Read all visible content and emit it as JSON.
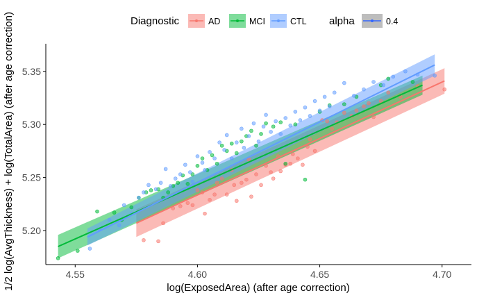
{
  "chart_data": {
    "type": "scatter",
    "title": "",
    "xlabel": "log(ExposedArea) (after age correction)",
    "ylabel": "1/2 log(AvgThickness) + log(TotalArea) (after age correction)",
    "xlim": [
      4.538,
      4.712
    ],
    "ylim": [
      5.168,
      5.376
    ],
    "x_ticks": [
      4.55,
      4.6,
      4.65,
      4.7
    ],
    "x_tick_labels": [
      "4.55",
      "4.60",
      "4.65",
      "4.70"
    ],
    "y_ticks": [
      5.2,
      5.25,
      5.3,
      5.35
    ],
    "y_tick_labels": [
      "5.20",
      "5.25",
      "5.30",
      "5.35"
    ],
    "grid": false,
    "legend_placement": "top",
    "legend": {
      "group_title": "Diagnostic",
      "groups": [
        "AD",
        "MCI",
        "CTL"
      ],
      "alpha_title": "alpha",
      "alpha_value": "0.4"
    },
    "series": [
      {
        "name": "AD",
        "color": "#F8766D",
        "fit": {
          "x": [
            4.575,
            4.701
          ],
          "y": [
            5.207,
            5.341
          ]
        },
        "band_halfwidth": {
          "start": 0.013,
          "end": 0.012
        },
        "points": [
          [
            4.578,
            5.191
          ],
          [
            4.584,
            5.19
          ],
          [
            4.586,
            5.207
          ],
          [
            4.59,
            5.221
          ],
          [
            4.593,
            5.223
          ],
          [
            4.596,
            5.226
          ],
          [
            4.598,
            5.224
          ],
          [
            4.6,
            5.238
          ],
          [
            4.602,
            5.236
          ],
          [
            4.603,
            5.216
          ],
          [
            4.605,
            5.229
          ],
          [
            4.607,
            5.234
          ],
          [
            4.608,
            5.245
          ],
          [
            4.61,
            5.249
          ],
          [
            4.612,
            5.234
          ],
          [
            4.614,
            5.257
          ],
          [
            4.615,
            5.243
          ],
          [
            4.616,
            5.228
          ],
          [
            4.618,
            5.245
          ],
          [
            4.62,
            5.248
          ],
          [
            4.621,
            5.267
          ],
          [
            4.622,
            5.232
          ],
          [
            4.624,
            5.253
          ],
          [
            4.626,
            5.243
          ],
          [
            4.628,
            5.261
          ],
          [
            4.63,
            5.255
          ],
          [
            4.631,
            5.249
          ],
          [
            4.633,
            5.27
          ],
          [
            4.634,
            5.256
          ],
          [
            4.636,
            5.262
          ],
          [
            4.638,
            5.263
          ],
          [
            4.639,
            5.272
          ],
          [
            4.641,
            5.268
          ],
          [
            4.643,
            5.262
          ],
          [
            4.645,
            5.279
          ],
          [
            4.646,
            5.286
          ],
          [
            4.648,
            5.275
          ],
          [
            4.651,
            5.304
          ],
          [
            4.653,
            5.303
          ],
          [
            4.655,
            5.296
          ],
          [
            4.657,
            5.302
          ],
          [
            4.66,
            5.311
          ],
          [
            4.663,
            5.308
          ],
          [
            4.665,
            5.313
          ],
          [
            4.668,
            5.317
          ],
          [
            4.67,
            5.32
          ],
          [
            4.672,
            5.307
          ],
          [
            4.675,
            5.322
          ],
          [
            4.678,
            5.33
          ],
          [
            4.683,
            5.326
          ],
          [
            4.69,
            5.336
          ],
          [
            4.701,
            5.333
          ]
        ]
      },
      {
        "name": "MCI",
        "color": "#00BA38",
        "fit": {
          "x": [
            4.543,
            4.692
          ],
          "y": [
            5.185,
            5.337
          ]
        },
        "band_halfwidth": {
          "start": 0.011,
          "end": 0.009
        },
        "points": [
          [
            4.543,
            5.174
          ],
          [
            4.551,
            5.181
          ],
          [
            4.559,
            5.218
          ],
          [
            4.566,
            5.217
          ],
          [
            4.569,
            5.21
          ],
          [
            4.573,
            5.222
          ],
          [
            4.576,
            5.231
          ],
          [
            4.579,
            5.236
          ],
          [
            4.581,
            5.238
          ],
          [
            4.584,
            5.239
          ],
          [
            4.586,
            5.231
          ],
          [
            4.588,
            5.236
          ],
          [
            4.59,
            5.242
          ],
          [
            4.592,
            5.245
          ],
          [
            4.594,
            5.252
          ],
          [
            4.596,
            5.244
          ],
          [
            4.598,
            5.253
          ],
          [
            4.6,
            5.261
          ],
          [
            4.602,
            5.268
          ],
          [
            4.604,
            5.257
          ],
          [
            4.606,
            5.271
          ],
          [
            4.608,
            5.263
          ],
          [
            4.61,
            5.28
          ],
          [
            4.612,
            5.275
          ],
          [
            4.614,
            5.282
          ],
          [
            4.616,
            5.273
          ],
          [
            4.618,
            5.284
          ],
          [
            4.62,
            5.289
          ],
          [
            4.622,
            5.294
          ],
          [
            4.624,
            5.28
          ],
          [
            4.626,
            5.291
          ],
          [
            4.628,
            5.301
          ],
          [
            4.631,
            5.298
          ],
          [
            4.634,
            5.302
          ],
          [
            4.636,
            5.263
          ],
          [
            4.64,
            5.3
          ],
          [
            4.644,
            5.248
          ],
          [
            4.65,
            5.312
          ],
          [
            4.654,
            5.318
          ],
          [
            4.66,
            5.319
          ],
          [
            4.665,
            5.326
          ],
          [
            4.675,
            5.337
          ],
          [
            4.678,
            5.343
          ],
          [
            4.688,
            5.34
          ]
        ]
      },
      {
        "name": "CTL",
        "color": "#619CFF",
        "fit": {
          "x": [
            4.555,
            4.697
          ],
          "y": [
            5.194,
            5.356
          ]
        },
        "band_halfwidth": {
          "start": 0.008,
          "end": 0.01
        },
        "points": [
          [
            4.556,
            5.183
          ],
          [
            4.56,
            5.201
          ],
          [
            4.564,
            5.21
          ],
          [
            4.568,
            5.205
          ],
          [
            4.57,
            5.224
          ],
          [
            4.573,
            5.216
          ],
          [
            4.576,
            5.231
          ],
          [
            4.578,
            5.236
          ],
          [
            4.58,
            5.243
          ],
          [
            4.583,
            5.239
          ],
          [
            4.585,
            5.245
          ],
          [
            4.587,
            5.258
          ],
          [
            4.589,
            5.242
          ],
          [
            4.591,
            5.249
          ],
          [
            4.593,
            5.253
          ],
          [
            4.595,
            5.262
          ],
          [
            4.597,
            5.255
          ],
          [
            4.598,
            5.246
          ],
          [
            4.6,
            5.27
          ],
          [
            4.602,
            5.264
          ],
          [
            4.603,
            5.257
          ],
          [
            4.605,
            5.274
          ],
          [
            4.607,
            5.268
          ],
          [
            4.609,
            5.283
          ],
          [
            4.611,
            5.276
          ],
          [
            4.612,
            5.29
          ],
          [
            4.614,
            5.268
          ],
          [
            4.616,
            5.283
          ],
          [
            4.618,
            5.296
          ],
          [
            4.619,
            5.278
          ],
          [
            4.621,
            5.289
          ],
          [
            4.623,
            5.301
          ],
          [
            4.625,
            5.284
          ],
          [
            4.627,
            5.298
          ],
          [
            4.628,
            5.309
          ],
          [
            4.63,
            5.293
          ],
          [
            4.632,
            5.303
          ],
          [
            4.634,
            5.291
          ],
          [
            4.636,
            5.306
          ],
          [
            4.638,
            5.299
          ],
          [
            4.64,
            5.312
          ],
          [
            4.642,
            5.304
          ],
          [
            4.644,
            5.316
          ],
          [
            4.646,
            5.308
          ],
          [
            4.648,
            5.322
          ],
          [
            4.65,
            5.313
          ],
          [
            4.652,
            5.326
          ],
          [
            4.654,
            5.317
          ],
          [
            4.656,
            5.33
          ],
          [
            4.66,
            5.339
          ],
          [
            4.664,
            5.327
          ],
          [
            4.668,
            5.333
          ],
          [
            4.672,
            5.34
          ],
          [
            4.676,
            5.337
          ],
          [
            4.68,
            5.345
          ],
          [
            4.685,
            5.35
          ],
          [
            4.69,
            5.347
          ],
          [
            4.697,
            5.346
          ]
        ]
      }
    ],
    "alpha_legend_color": "#3366FF"
  }
}
